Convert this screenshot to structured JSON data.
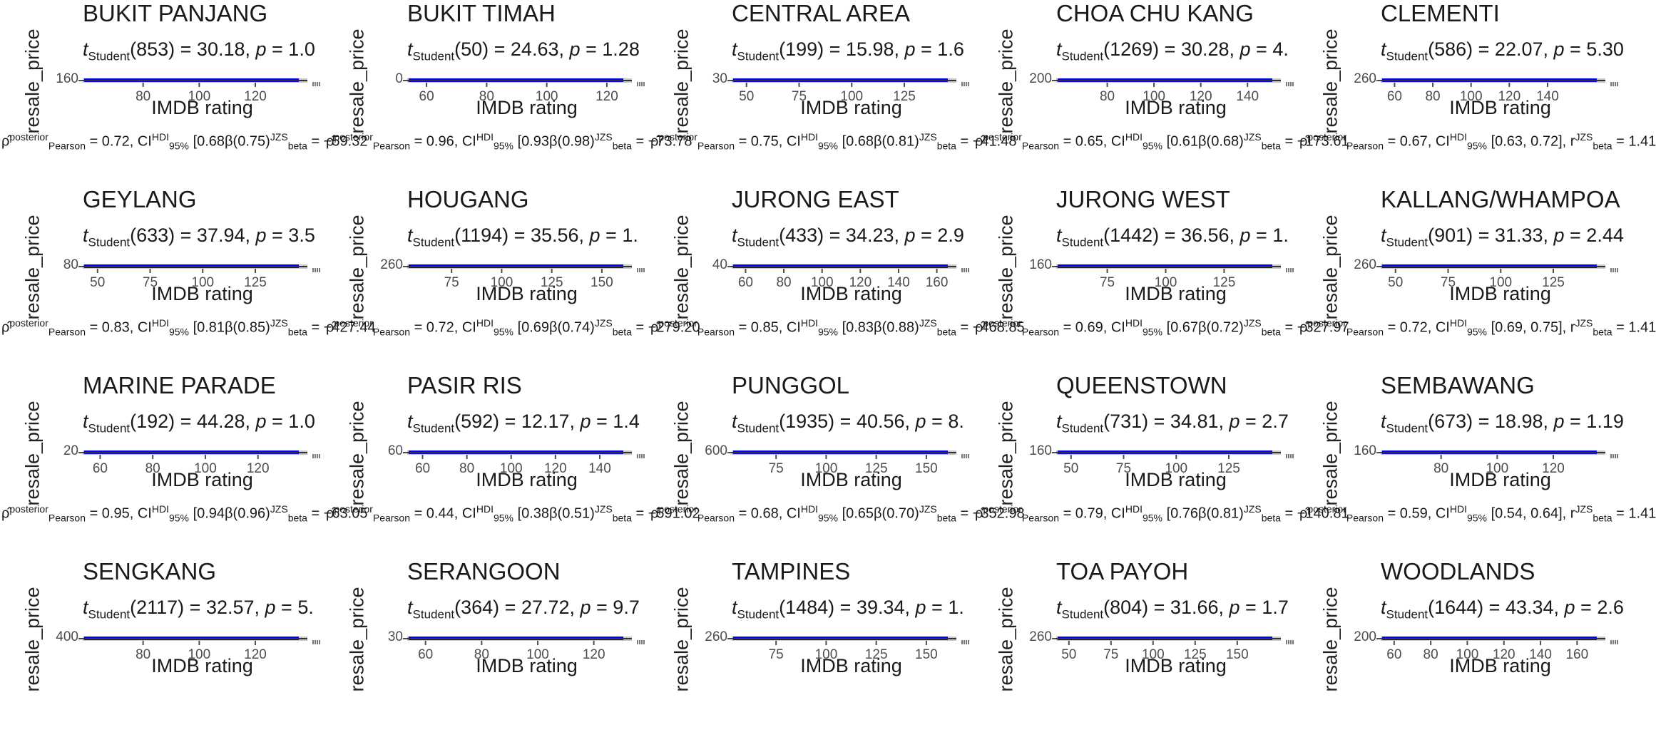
{
  "xlabel": "IMDB rating",
  "ylabel": "resale_price",
  "colors": {
    "points": "#0000ff",
    "text": "#1a1a1a",
    "axis": "#4d4d4d",
    "band": "#c8c8c8"
  },
  "chart_data": {
    "type": "scatter",
    "grid": false,
    "panels": [
      {
        "title": "BUKIT PANJANG",
        "df": "853",
        "t": "30.18",
        "p_text": "p = 1.0",
        "ytick": "160",
        "xticks": [
          "80",
          "100",
          "120"
        ],
        "xlim": [
          60,
          135
        ],
        "rho": "0.72",
        "caption": "= 0.72, CI",
        "caption_tail": "[0.68β(0.75)",
        "bf": "−59.32"
      },
      {
        "title": "BUKIT TIMAH",
        "df": "50",
        "t": "24.63",
        "p_text": "p = 1.28",
        "ytick": "0",
        "xticks": [
          "60",
          "80",
          "100",
          "120"
        ],
        "xlim": [
          55,
          125
        ],
        "rho": "0.96",
        "caption": "= 0.96, CI",
        "caption_tail": "[0.93β(0.98)",
        "bf": "−73.78"
      },
      {
        "title": "CENTRAL AREA",
        "df": "199",
        "t": "15.98",
        "p_text": "p = 1.6",
        "ytick": "30",
        "xticks": [
          "50",
          "75",
          "100",
          "125"
        ],
        "xlim": [
          45,
          145
        ],
        "rho": "0.75",
        "caption": "= 0.75, CI",
        "caption_tail": "[0.68β(0.81)",
        "bf": "−41.48"
      },
      {
        "title": "CHOA CHU KANG",
        "df": "1269",
        "t": "30.28",
        "p_text": "p = 4.",
        "ytick": "200",
        "xticks": [
          "80",
          "100",
          "120",
          "140"
        ],
        "xlim": [
          60,
          150
        ],
        "rho": "0.65",
        "caption": "= 0.65, CI",
        "caption_tail": "[0.61β(0.68)",
        "bf": "−173.61"
      },
      {
        "title": "CLEMENTI",
        "df": "586",
        "t": "22.07",
        "p_text": "p = 5.30",
        "ytick": "260",
        "xticks": [
          "60",
          "80",
          "100",
          "120",
          "140"
        ],
        "xlim": [
          55,
          165
        ],
        "rho": "0.67",
        "caption": "= 0.67, CI",
        "caption_tail": "[0.63, 0.72], r",
        "bf": "1.41"
      },
      {
        "title": "GEYLANG",
        "df": "633",
        "t": "37.94",
        "p_text": "p = 3.5",
        "ytick": "80",
        "xticks": [
          "50",
          "75",
          "100",
          "125"
        ],
        "xlim": [
          45,
          145
        ],
        "rho": "0.83",
        "caption": "= 0.83, CI",
        "caption_tail": "[0.81β(0.85)",
        "bf": "−427.44"
      },
      {
        "title": "HOUGANG",
        "df": "1194",
        "t": "35.56",
        "p_text": "p = 1.",
        "ytick": "260",
        "xticks": [
          "75",
          "100",
          "125",
          "150"
        ],
        "xlim": [
          55,
          160
        ],
        "rho": "0.72",
        "caption": "= 0.72, CI",
        "caption_tail": "[0.69β(0.74)",
        "bf": "−279.20"
      },
      {
        "title": "JURONG EAST",
        "df": "433",
        "t": "34.23",
        "p_text": "p = 2.9",
        "ytick": "40",
        "xticks": [
          "60",
          "80",
          "100",
          "120",
          "140",
          "160"
        ],
        "xlim": [
          55,
          165
        ],
        "rho": "0.85",
        "caption": "= 0.85, CI",
        "caption_tail": "[0.83β(0.88)",
        "bf": "−468.85"
      },
      {
        "title": "JURONG WEST",
        "df": "1442",
        "t": "36.56",
        "p_text": "p = 1.",
        "ytick": "160",
        "xticks": [
          "75",
          "100",
          "125"
        ],
        "xlim": [
          55,
          145
        ],
        "rho": "0.69",
        "caption": "= 0.69, CI",
        "caption_tail": "[0.67β(0.72)",
        "bf": "−327.97"
      },
      {
        "title": "KALLANG/WHAMPOA",
        "df": "901",
        "t": "31.33",
        "p_text": "p = 2.44",
        "ytick": "260",
        "xticks": [
          "50",
          "75",
          "100",
          "125"
        ],
        "xlim": [
          45,
          145
        ],
        "rho": "0.72",
        "caption": "= 0.72, CI",
        "caption_tail": "[0.69, 0.75], r",
        "bf": "1.41"
      },
      {
        "title": "MARINE PARADE",
        "df": "192",
        "t": "44.28",
        "p_text": "p = 1.0",
        "ytick": "20",
        "xticks": [
          "60",
          "80",
          "100",
          "120"
        ],
        "xlim": [
          55,
          135
        ],
        "rho": "0.95",
        "caption": "= 0.95, CI",
        "caption_tail": "[0.94β(0.96)",
        "bf": "−63.05"
      },
      {
        "title": "PASIR RIS",
        "df": "592",
        "t": "12.17",
        "p_text": "p = 1.4",
        "ytick": "60",
        "xticks": [
          "60",
          "80",
          "100",
          "120",
          "140"
        ],
        "xlim": [
          55,
          150
        ],
        "rho": "0.44",
        "caption": "= 0.44, CI",
        "caption_tail": "[0.38β(0.51)",
        "bf": "−591.02"
      },
      {
        "title": "PUNGGOL",
        "df": "1935",
        "t": "40.56",
        "p_text": "p = 8.",
        "ytick": "600",
        "xticks": [
          "75",
          "100",
          "125",
          "150"
        ],
        "xlim": [
          55,
          160
        ],
        "rho": "0.68",
        "caption": "= 0.68, CI",
        "caption_tail": "[0.65β(0.70)",
        "bf": "−352.98"
      },
      {
        "title": "QUEENSTOWN",
        "df": "731",
        "t": "34.81",
        "p_text": "p = 2.7",
        "ytick": "160",
        "xticks": [
          "50",
          "75",
          "100",
          "125"
        ],
        "xlim": [
          45,
          145
        ],
        "rho": "0.79",
        "caption": "= 0.79, CI",
        "caption_tail": "[0.76β(0.81)",
        "bf": "−140.81"
      },
      {
        "title": "SEMBAWANG",
        "df": "673",
        "t": "18.98",
        "p_text": "p = 1.19",
        "ytick": "160",
        "xticks": [
          "80",
          "100",
          "120"
        ],
        "xlim": [
          60,
          135
        ],
        "rho": "0.59",
        "caption": "= 0.59, CI",
        "caption_tail": "[0.54, 0.64], r",
        "bf": "1.41"
      },
      {
        "title": "SENGKANG",
        "df": "2117",
        "t": "32.57",
        "p_text": "p = 5.",
        "ytick": "400",
        "xticks": [
          "80",
          "100",
          "120"
        ],
        "xlim": [
          60,
          135
        ],
        "rho": "",
        "caption": "",
        "caption_tail": "",
        "bf": ""
      },
      {
        "title": "SERANGOON",
        "df": "364",
        "t": "27.72",
        "p_text": "p = 9.7",
        "ytick": "30",
        "xticks": [
          "60",
          "80",
          "100",
          "120"
        ],
        "xlim": [
          55,
          130
        ],
        "rho": "",
        "caption": "",
        "caption_tail": "",
        "bf": ""
      },
      {
        "title": "TAMPINES",
        "df": "1484",
        "t": "39.34",
        "p_text": "p = 1.",
        "ytick": "260",
        "xticks": [
          "75",
          "100",
          "125",
          "150"
        ],
        "xlim": [
          55,
          160
        ],
        "rho": "",
        "caption": "",
        "caption_tail": "",
        "bf": ""
      },
      {
        "title": "TOA PAYOH",
        "df": "804",
        "t": "31.66",
        "p_text": "p = 1.7",
        "ytick": "260",
        "xticks": [
          "50",
          "75",
          "100",
          "125",
          "150"
        ],
        "xlim": [
          45,
          170
        ],
        "rho": "",
        "caption": "",
        "caption_tail": "",
        "bf": ""
      },
      {
        "title": "WOODLANDS",
        "df": "1644",
        "t": "43.34",
        "p_text": "p = 2.6",
        "ytick": "200",
        "xticks": [
          "60",
          "80",
          "100",
          "120",
          "140",
          "160"
        ],
        "xlim": [
          55,
          170
        ],
        "rho": "",
        "caption": "",
        "caption_tail": "",
        "bf": ""
      }
    ]
  }
}
